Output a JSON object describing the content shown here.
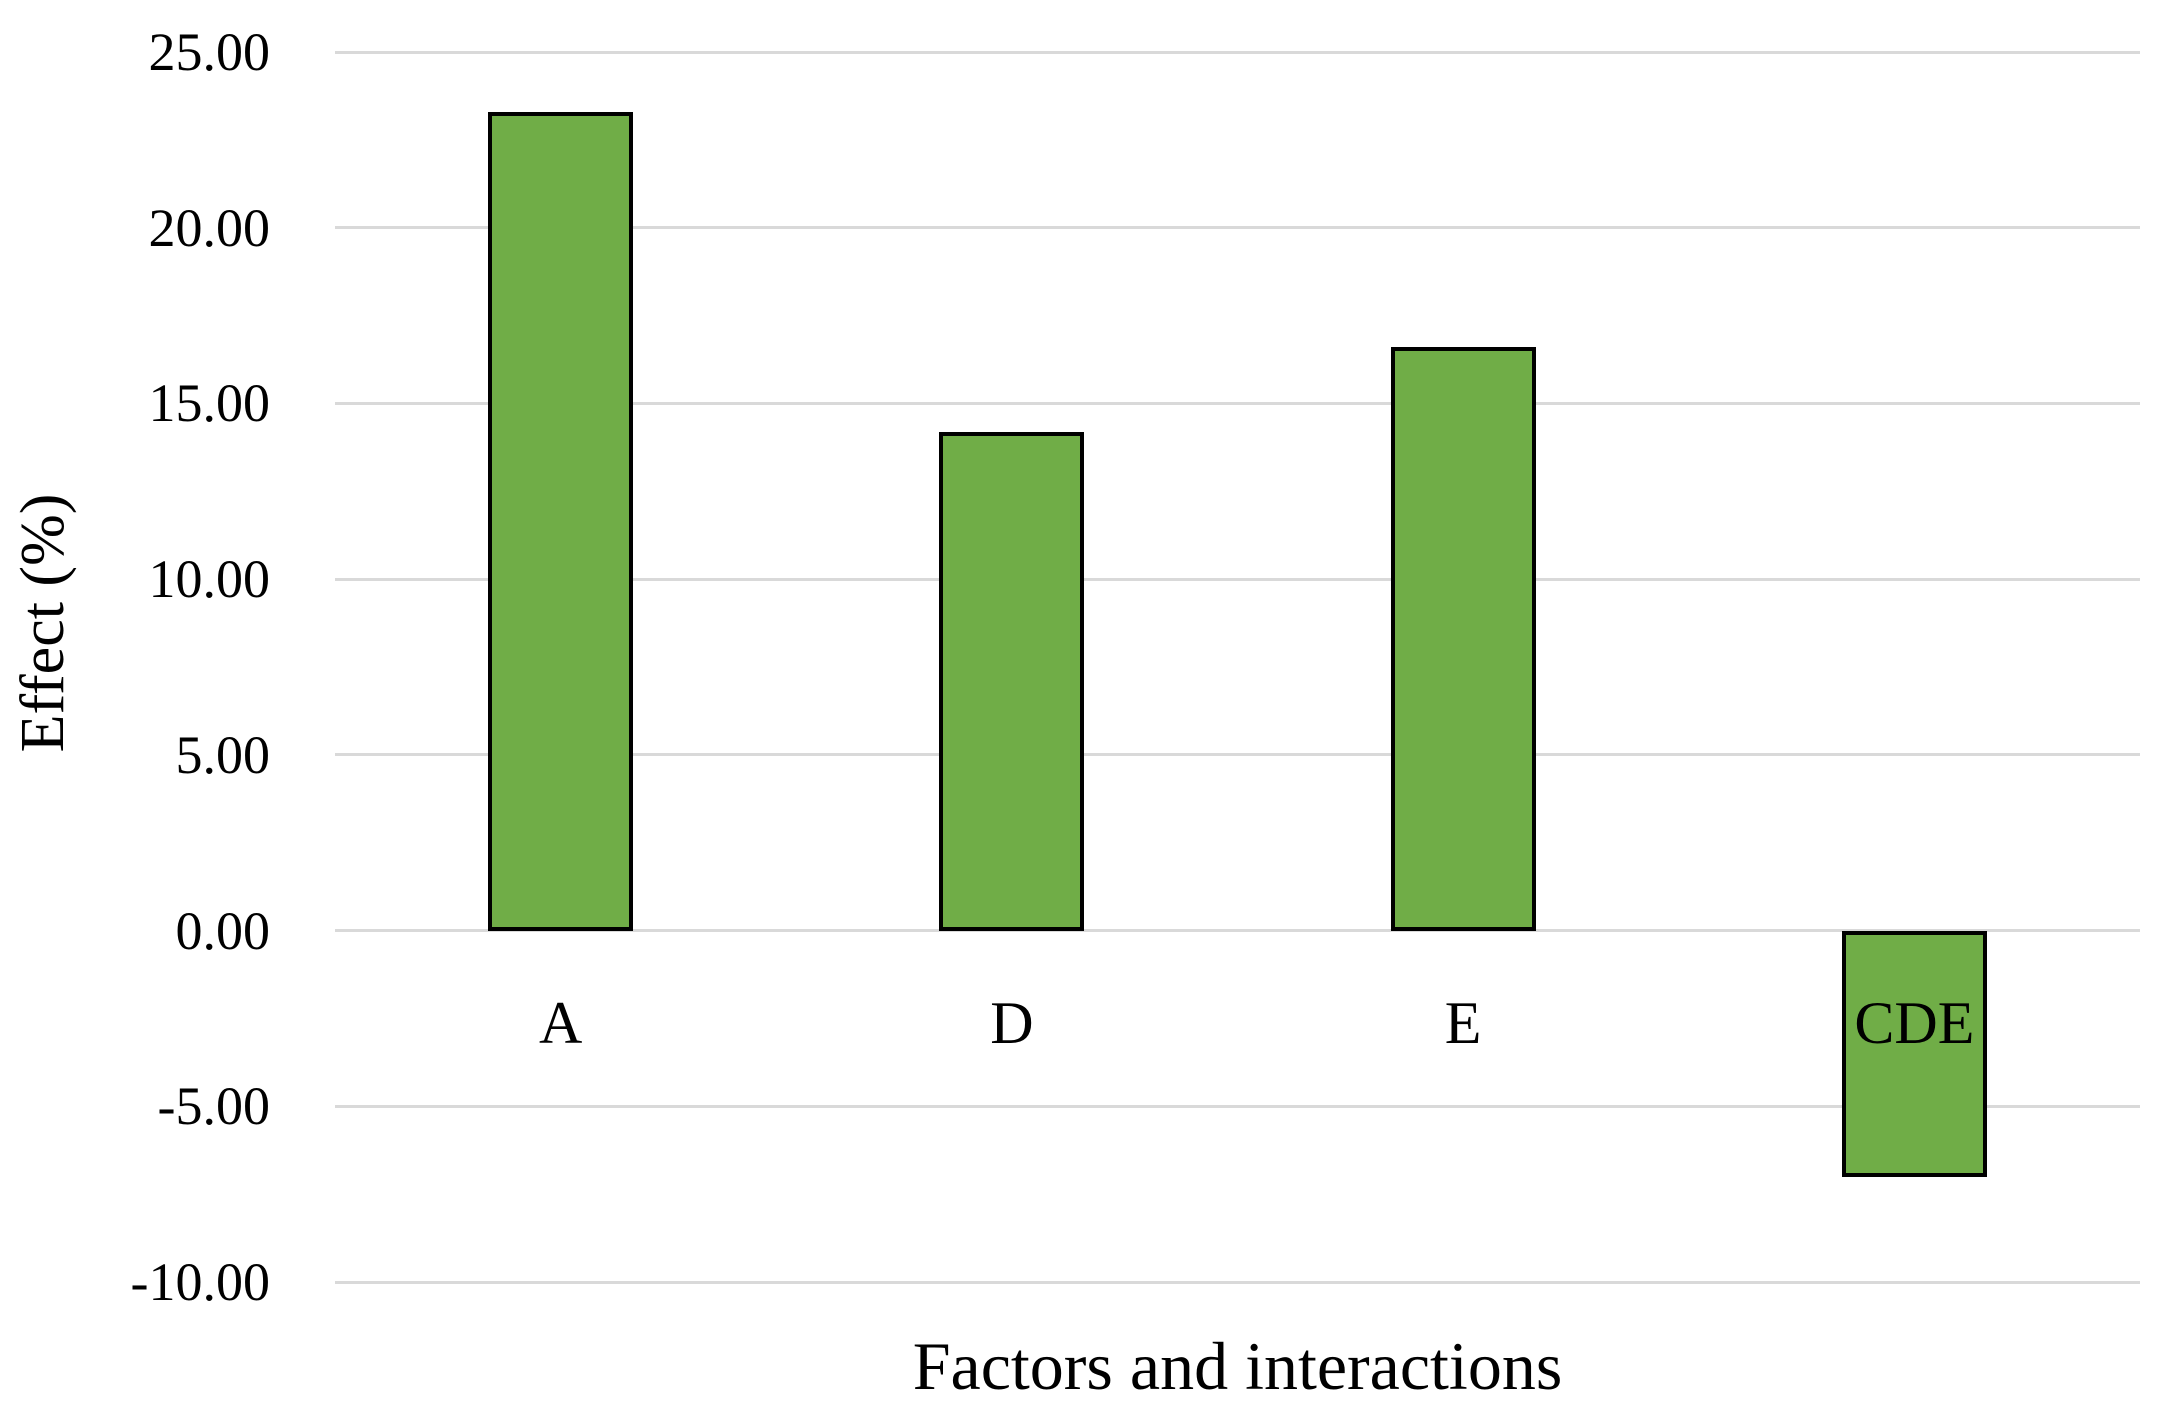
{
  "chart_data": {
    "type": "bar",
    "title": "",
    "xlabel": "Factors and interactions",
    "ylabel": "Effect (%)",
    "categories": [
      "A",
      "D",
      "E",
      "CDE"
    ],
    "values": [
      23.3,
      14.2,
      16.6,
      -7.0
    ],
    "ylim": [
      -10,
      25
    ],
    "ytick_step": 5,
    "yticks": [
      25,
      20,
      15,
      10,
      5,
      0,
      -5,
      -10
    ],
    "ytick_labels": [
      "25.00",
      "20.00",
      "15.00",
      "10.00",
      "5.00",
      "0.00",
      "-5.00",
      "-10.00"
    ],
    "grid": true,
    "legend": "none",
    "colors": {
      "bar_fill": "#70AD47",
      "bar_border": "#000000",
      "gridline": "#D9D9D9",
      "text": "#000000",
      "background": "#FFFFFF"
    }
  }
}
